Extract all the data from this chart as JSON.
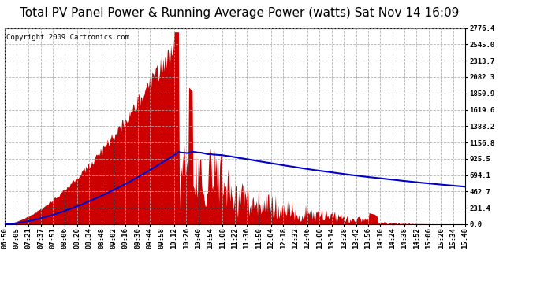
{
  "title": "Total PV Panel Power & Running Average Power (watts) Sat Nov 14 16:09",
  "copyright": "Copyright 2009 Cartronics.com",
  "background_color": "#ffffff",
  "plot_bg_color": "#ffffff",
  "bar_color": "#cc0000",
  "line_color": "#0000cc",
  "grid_color": "#aaaaaa",
  "yticks": [
    0.0,
    231.4,
    462.7,
    694.1,
    925.5,
    1156.8,
    1388.2,
    1619.6,
    1850.9,
    2082.3,
    2313.7,
    2545.0,
    2776.4
  ],
  "ymax": 2776.4,
  "ymin": 0.0,
  "x_labels": [
    "06:50",
    "07:05",
    "07:21",
    "07:37",
    "07:51",
    "08:06",
    "08:20",
    "08:34",
    "08:48",
    "09:02",
    "09:16",
    "09:30",
    "09:44",
    "09:58",
    "10:12",
    "10:26",
    "10:40",
    "10:54",
    "11:08",
    "11:22",
    "11:36",
    "11:50",
    "12:04",
    "12:18",
    "12:32",
    "12:46",
    "13:00",
    "13:14",
    "13:28",
    "13:42",
    "13:56",
    "14:10",
    "14:24",
    "14:38",
    "14:52",
    "15:06",
    "15:20",
    "15:34",
    "15:48"
  ],
  "title_fontsize": 11,
  "label_fontsize": 6.5,
  "copyright_fontsize": 6.5
}
